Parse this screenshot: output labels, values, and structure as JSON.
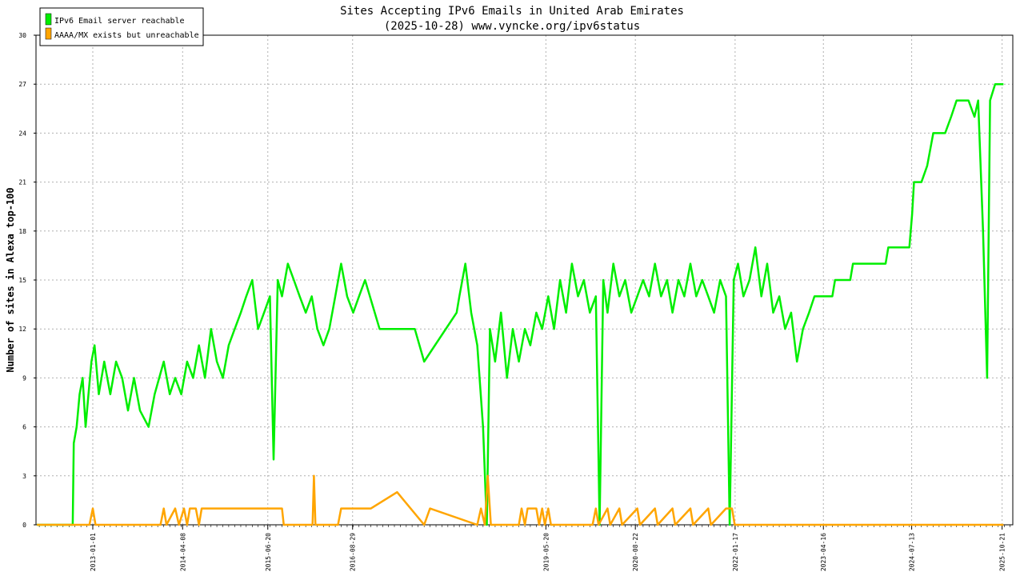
{
  "chart_data": {
    "type": "line",
    "title": "Sites Accepting IPv6 Emails in United Arab Emirates",
    "subtitle": "(2025-10-28) www.vyncke.org/ipv6status",
    "ylabel": "Number of sites in Alexa top-100",
    "xlabel": "",
    "ylim": [
      0,
      30
    ],
    "yticks": [
      "0",
      "3",
      "6",
      "9",
      "12",
      "15",
      "18",
      "21",
      "24",
      "27",
      "30"
    ],
    "xlim": [
      "2012-03-15",
      "2025-12-15"
    ],
    "xticks": [
      "2013-01-01",
      "2014-04-08",
      "2015-06-20",
      "2016-08-29",
      "2019-05-20",
      "2020-08-22",
      "2022-01-17",
      "2023-04-16",
      "2024-07-13",
      "2025-10-21"
    ],
    "grid": true,
    "legend_position": "top-left",
    "series": [
      {
        "name": "IPv6 Email server reachable",
        "color": "#00ee00",
        "points": [
          [
            "2012-03-20",
            0
          ],
          [
            "2012-09-20",
            0
          ],
          [
            "2012-09-25",
            5
          ],
          [
            "2012-10-10",
            6
          ],
          [
            "2012-10-25",
            8
          ],
          [
            "2012-11-10",
            9
          ],
          [
            "2012-11-25",
            6
          ],
          [
            "2012-12-10",
            8
          ],
          [
            "2012-12-25",
            10
          ],
          [
            "2013-01-10",
            11
          ],
          [
            "2013-02-01",
            8
          ],
          [
            "2013-03-01",
            10
          ],
          [
            "2013-04-01",
            8
          ],
          [
            "2013-05-01",
            10
          ],
          [
            "2013-06-01",
            9
          ],
          [
            "2013-07-01",
            7
          ],
          [
            "2013-08-01",
            9
          ],
          [
            "2013-09-01",
            7
          ],
          [
            "2013-10-15",
            6
          ],
          [
            "2013-11-15",
            8
          ],
          [
            "2014-01-01",
            10
          ],
          [
            "2014-02-01",
            8
          ],
          [
            "2014-03-01",
            9
          ],
          [
            "2014-04-01",
            8
          ],
          [
            "2014-05-01",
            10
          ],
          [
            "2014-06-01",
            9
          ],
          [
            "2014-07-01",
            11
          ],
          [
            "2014-08-01",
            9
          ],
          [
            "2014-09-01",
            12
          ],
          [
            "2014-10-01",
            10
          ],
          [
            "2014-11-01",
            9
          ],
          [
            "2014-12-01",
            11
          ],
          [
            "2015-01-01",
            12
          ],
          [
            "2015-02-01",
            13
          ],
          [
            "2015-03-01",
            14
          ],
          [
            "2015-04-01",
            15
          ],
          [
            "2015-05-01",
            12
          ],
          [
            "2015-06-01",
            13
          ],
          [
            "2015-07-01",
            14
          ],
          [
            "2015-07-20",
            4
          ],
          [
            "2015-08-10",
            15
          ],
          [
            "2015-09-01",
            14
          ],
          [
            "2015-10-01",
            16
          ],
          [
            "2015-11-01",
            15
          ],
          [
            "2015-12-01",
            14
          ],
          [
            "2016-01-01",
            13
          ],
          [
            "2016-02-01",
            14
          ],
          [
            "2016-03-01",
            12
          ],
          [
            "2016-04-01",
            11
          ],
          [
            "2016-05-01",
            12
          ],
          [
            "2016-06-01",
            14
          ],
          [
            "2016-07-01",
            16
          ],
          [
            "2016-08-01",
            14
          ],
          [
            "2016-09-01",
            13
          ],
          [
            "2016-10-01",
            14
          ],
          [
            "2016-11-01",
            15
          ],
          [
            "2017-01-15",
            12
          ],
          [
            "2017-07-15",
            12
          ],
          [
            "2017-09-01",
            10
          ],
          [
            "2018-02-15",
            13
          ],
          [
            "2018-03-01",
            14
          ],
          [
            "2018-04-01",
            16
          ],
          [
            "2018-05-01",
            13
          ],
          [
            "2018-06-01",
            11
          ],
          [
            "2018-07-01",
            6
          ],
          [
            "2018-07-20",
            0
          ],
          [
            "2018-08-05",
            12
          ],
          [
            "2018-09-01",
            10
          ],
          [
            "2018-10-01",
            13
          ],
          [
            "2018-11-01",
            9
          ],
          [
            "2018-12-01",
            12
          ],
          [
            "2019-01-01",
            10
          ],
          [
            "2019-02-01",
            12
          ],
          [
            "2019-03-01",
            11
          ],
          [
            "2019-04-01",
            13
          ],
          [
            "2019-05-01",
            12
          ],
          [
            "2019-06-01",
            14
          ],
          [
            "2019-07-01",
            12
          ],
          [
            "2019-08-01",
            15
          ],
          [
            "2019-09-01",
            13
          ],
          [
            "2019-10-01",
            16
          ],
          [
            "2019-11-01",
            14
          ],
          [
            "2019-12-01",
            15
          ],
          [
            "2020-01-01",
            13
          ],
          [
            "2020-02-01",
            14
          ],
          [
            "2020-02-20",
            0
          ],
          [
            "2020-03-10",
            15
          ],
          [
            "2020-04-01",
            13
          ],
          [
            "2020-05-01",
            16
          ],
          [
            "2020-06-01",
            14
          ],
          [
            "2020-07-01",
            15
          ],
          [
            "2020-08-01",
            13
          ],
          [
            "2020-09-01",
            14
          ],
          [
            "2020-10-01",
            15
          ],
          [
            "2020-11-01",
            14
          ],
          [
            "2020-12-01",
            16
          ],
          [
            "2021-01-01",
            14
          ],
          [
            "2021-02-01",
            15
          ],
          [
            "2021-03-01",
            13
          ],
          [
            "2021-04-01",
            15
          ],
          [
            "2021-05-01",
            14
          ],
          [
            "2021-06-01",
            16
          ],
          [
            "2021-07-01",
            14
          ],
          [
            "2021-08-01",
            15
          ],
          [
            "2021-09-01",
            14
          ],
          [
            "2021-10-01",
            13
          ],
          [
            "2021-11-01",
            15
          ],
          [
            "2021-12-01",
            14
          ],
          [
            "2021-12-20",
            0
          ],
          [
            "2022-01-10",
            15
          ],
          [
            "2022-02-01",
            16
          ],
          [
            "2022-03-01",
            14
          ],
          [
            "2022-04-01",
            15
          ],
          [
            "2022-05-01",
            17
          ],
          [
            "2022-06-01",
            14
          ],
          [
            "2022-07-01",
            16
          ],
          [
            "2022-08-01",
            13
          ],
          [
            "2022-09-01",
            14
          ],
          [
            "2022-10-01",
            12
          ],
          [
            "2022-11-01",
            13
          ],
          [
            "2022-12-01",
            10
          ],
          [
            "2023-01-01",
            12
          ],
          [
            "2023-02-01",
            13
          ],
          [
            "2023-03-01",
            14
          ],
          [
            "2023-06-01",
            14
          ],
          [
            "2023-06-15",
            15
          ],
          [
            "2023-09-01",
            15
          ],
          [
            "2023-09-15",
            16
          ],
          [
            "2024-03-01",
            16
          ],
          [
            "2024-03-15",
            17
          ],
          [
            "2024-07-01",
            17
          ],
          [
            "2024-07-15",
            19
          ],
          [
            "2024-07-25",
            21
          ],
          [
            "2024-09-01",
            21
          ],
          [
            "2024-10-01",
            22
          ],
          [
            "2024-11-01",
            24
          ],
          [
            "2025-01-01",
            24
          ],
          [
            "2025-02-01",
            25
          ],
          [
            "2025-03-01",
            26
          ],
          [
            "2025-05-01",
            26
          ],
          [
            "2025-06-01",
            25
          ],
          [
            "2025-06-20",
            26
          ],
          [
            "2025-07-15",
            18
          ],
          [
            "2025-08-05",
            9
          ],
          [
            "2025-08-20",
            26
          ],
          [
            "2025-09-15",
            27
          ],
          [
            "2025-10-28",
            27
          ]
        ]
      },
      {
        "name": "AAAA/MX exists but unreachable",
        "color": "#ffa500",
        "points": [
          [
            "2012-03-20",
            0
          ],
          [
            "2012-12-15",
            0
          ],
          [
            "2013-01-01",
            1
          ],
          [
            "2013-01-15",
            0
          ],
          [
            "2013-12-15",
            0
          ],
          [
            "2014-01-01",
            1
          ],
          [
            "2014-01-15",
            0
          ],
          [
            "2014-03-01",
            1
          ],
          [
            "2014-03-20",
            0
          ],
          [
            "2014-04-15",
            1
          ],
          [
            "2014-05-01",
            0
          ],
          [
            "2014-05-15",
            1
          ],
          [
            "2014-06-15",
            1
          ],
          [
            "2014-07-01",
            0
          ],
          [
            "2014-07-15",
            1
          ],
          [
            "2015-09-01",
            1
          ],
          [
            "2015-09-10",
            0
          ],
          [
            "2016-02-05",
            0
          ],
          [
            "2016-02-12",
            3
          ],
          [
            "2016-02-20",
            0
          ],
          [
            "2016-06-15",
            0
          ],
          [
            "2016-07-01",
            1
          ],
          [
            "2016-12-01",
            1
          ],
          [
            "2017-04-15",
            2
          ],
          [
            "2017-09-01",
            0
          ],
          [
            "2017-10-01",
            1
          ],
          [
            "2018-06-01",
            0
          ],
          [
            "2018-06-20",
            1
          ],
          [
            "2018-07-10",
            0
          ],
          [
            "2018-07-25",
            3
          ],
          [
            "2018-08-10",
            0
          ],
          [
            "2019-01-01",
            0
          ],
          [
            "2019-01-15",
            1
          ],
          [
            "2019-02-01",
            0
          ],
          [
            "2019-02-15",
            1
          ],
          [
            "2019-04-01",
            1
          ],
          [
            "2019-04-15",
            0
          ],
          [
            "2019-05-01",
            1
          ],
          [
            "2019-05-15",
            0
          ],
          [
            "2019-06-01",
            1
          ],
          [
            "2019-06-15",
            0
          ],
          [
            "2020-01-15",
            0
          ],
          [
            "2020-02-01",
            1
          ],
          [
            "2020-02-15",
            0
          ],
          [
            "2020-04-01",
            1
          ],
          [
            "2020-04-15",
            0
          ],
          [
            "2020-06-01",
            1
          ],
          [
            "2020-06-15",
            0
          ],
          [
            "2020-09-01",
            1
          ],
          [
            "2020-09-15",
            0
          ],
          [
            "2020-12-01",
            1
          ],
          [
            "2020-12-15",
            0
          ],
          [
            "2021-03-01",
            1
          ],
          [
            "2021-03-15",
            0
          ],
          [
            "2021-06-01",
            1
          ],
          [
            "2021-06-15",
            0
          ],
          [
            "2021-09-01",
            1
          ],
          [
            "2021-09-15",
            0
          ],
          [
            "2021-12-01",
            1
          ],
          [
            "2022-01-01",
            1
          ],
          [
            "2022-01-15",
            0
          ],
          [
            "2025-10-28",
            0
          ]
        ]
      }
    ]
  }
}
